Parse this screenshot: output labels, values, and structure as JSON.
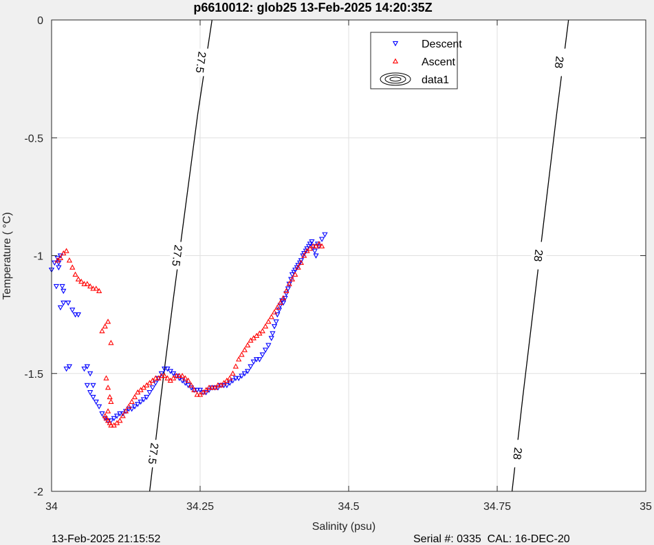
{
  "chart_data": {
    "type": "scatter",
    "title": "p6610012: glob25 13-Feb-2025 14:20:35Z",
    "xlabel": "Salinity (psu)",
    "ylabel": "Temperature (   °C)",
    "xlim": [
      34,
      35
    ],
    "ylim": [
      -2,
      0
    ],
    "xticks": [
      34,
      34.25,
      34.5,
      34.75,
      35
    ],
    "xtick_labels": [
      "34",
      "34.25",
      "34.5",
      "34.75",
      "35"
    ],
    "yticks": [
      0,
      -0.5,
      -1,
      -1.5,
      -2
    ],
    "ytick_labels": [
      "0",
      "-0.5",
      "-1",
      "-1.5",
      "-2"
    ],
    "grid": true,
    "legend_position": "top-center",
    "contours": [
      {
        "label": "27.5",
        "points": [
          [
            34.165,
            -2.0
          ],
          [
            34.184,
            -1.6
          ],
          [
            34.204,
            -1.2
          ],
          [
            34.225,
            -0.8
          ],
          [
            34.246,
            -0.4
          ],
          [
            34.27,
            0.0
          ]
        ],
        "label_positions": [
          [
            34.252,
            -0.18
          ],
          [
            34.212,
            -1.0
          ],
          [
            34.172,
            -1.84
          ]
        ]
      },
      {
        "label": "28",
        "points": [
          [
            34.775,
            -2.0
          ],
          [
            34.793,
            -1.6
          ],
          [
            34.812,
            -1.2
          ],
          [
            34.831,
            -0.8
          ],
          [
            34.85,
            -0.4
          ],
          [
            34.87,
            0.0
          ]
        ],
        "label_positions": [
          [
            34.855,
            -0.18
          ],
          [
            34.82,
            -1.0
          ],
          [
            34.785,
            -1.84
          ]
        ]
      }
    ],
    "series": [
      {
        "name": "Descent",
        "color": "#0000ff",
        "marker": "triangle-down",
        "x": [
          34.0,
          34.005,
          34.01,
          34.015,
          34.012,
          34.018,
          34.02,
          34.015,
          34.008,
          34.012,
          34.02,
          34.028,
          34.035,
          34.04,
          34.045,
          34.03,
          34.025,
          34.06,
          34.065,
          34.07,
          34.055,
          34.06,
          34.065,
          34.07,
          34.075,
          34.08,
          34.085,
          34.09,
          34.095,
          34.1,
          34.105,
          34.11,
          34.115,
          34.12,
          34.125,
          34.13,
          34.135,
          34.14,
          34.145,
          34.15,
          34.155,
          34.16,
          34.165,
          34.17,
          34.175,
          34.18,
          34.185,
          34.19,
          34.195,
          34.2,
          34.205,
          34.21,
          34.215,
          34.22,
          34.225,
          34.23,
          34.235,
          34.24,
          34.245,
          34.25,
          34.255,
          34.26,
          34.265,
          34.27,
          34.275,
          34.28,
          34.285,
          34.29,
          34.295,
          34.3,
          34.305,
          34.31,
          34.315,
          34.32,
          34.325,
          34.33,
          34.335,
          34.34,
          34.345,
          34.35,
          34.355,
          34.36,
          34.365,
          34.37,
          34.372,
          34.375,
          34.378,
          34.38,
          34.383,
          34.385,
          34.388,
          34.39,
          34.393,
          34.395,
          34.398,
          34.4,
          34.403,
          34.405,
          34.408,
          34.41,
          34.413,
          34.415,
          34.418,
          34.42,
          34.423,
          34.425,
          34.428,
          34.43,
          34.433,
          34.435,
          34.438,
          34.44,
          34.443,
          34.445,
          34.448,
          34.45,
          34.455,
          34.46
        ],
        "y": [
          -1.06,
          -1.03,
          -1.01,
          -1.0,
          -1.05,
          -1.13,
          -1.2,
          -1.22,
          -1.13,
          -1.03,
          -1.15,
          -1.2,
          -1.23,
          -1.25,
          -1.25,
          -1.47,
          -1.48,
          -1.47,
          -1.5,
          -1.55,
          -1.48,
          -1.55,
          -1.58,
          -1.6,
          -1.62,
          -1.64,
          -1.67,
          -1.69,
          -1.7,
          -1.7,
          -1.69,
          -1.68,
          -1.67,
          -1.67,
          -1.66,
          -1.65,
          -1.65,
          -1.64,
          -1.63,
          -1.62,
          -1.61,
          -1.6,
          -1.58,
          -1.56,
          -1.54,
          -1.52,
          -1.5,
          -1.48,
          -1.48,
          -1.49,
          -1.5,
          -1.51,
          -1.52,
          -1.53,
          -1.54,
          -1.55,
          -1.56,
          -1.57,
          -1.57,
          -1.57,
          -1.58,
          -1.58,
          -1.57,
          -1.56,
          -1.56,
          -1.56,
          -1.55,
          -1.55,
          -1.55,
          -1.54,
          -1.53,
          -1.52,
          -1.52,
          -1.51,
          -1.5,
          -1.49,
          -1.47,
          -1.45,
          -1.44,
          -1.44,
          -1.42,
          -1.4,
          -1.38,
          -1.35,
          -1.33,
          -1.3,
          -1.28,
          -1.25,
          -1.23,
          -1.21,
          -1.19,
          -1.2,
          -1.18,
          -1.16,
          -1.14,
          -1.12,
          -1.1,
          -1.08,
          -1.07,
          -1.06,
          -1.05,
          -1.04,
          -1.03,
          -1.02,
          -1.0,
          -0.99,
          -0.98,
          -0.97,
          -0.96,
          -0.95,
          -0.94,
          -0.96,
          -0.98,
          -1.0,
          -0.95,
          -0.96,
          -0.93,
          -0.91
        ]
      },
      {
        "name": "Ascent",
        "color": "#ff0000",
        "marker": "triangle-up",
        "x": [
          34.01,
          34.015,
          34.02,
          34.025,
          34.03,
          34.035,
          34.04,
          34.045,
          34.05,
          34.055,
          34.06,
          34.065,
          34.07,
          34.075,
          34.08,
          34.085,
          34.09,
          34.095,
          34.1,
          34.092,
          34.095,
          34.098,
          34.1,
          34.095,
          34.09,
          34.092,
          34.095,
          34.098,
          34.1,
          34.105,
          34.11,
          34.115,
          34.12,
          34.125,
          34.13,
          34.135,
          34.14,
          34.145,
          34.15,
          34.155,
          34.16,
          34.165,
          34.17,
          34.175,
          34.18,
          34.185,
          34.19,
          34.195,
          34.2,
          34.205,
          34.21,
          34.215,
          34.22,
          34.225,
          34.23,
          34.235,
          34.24,
          34.245,
          34.25,
          34.255,
          34.26,
          34.265,
          34.27,
          34.275,
          34.28,
          34.285,
          34.29,
          34.295,
          34.3,
          34.305,
          34.31,
          34.315,
          34.32,
          34.325,
          34.33,
          34.335,
          34.34,
          34.345,
          34.35,
          34.355,
          34.36,
          34.365,
          34.37,
          34.375,
          34.38,
          34.385,
          34.39,
          34.395,
          34.4,
          34.405,
          34.41,
          34.415,
          34.42,
          34.425,
          34.43,
          34.435,
          34.44,
          34.445,
          34.45,
          34.455
        ],
        "y": [
          -1.02,
          -1.01,
          -0.99,
          -0.98,
          -1.02,
          -1.05,
          -1.08,
          -1.1,
          -1.11,
          -1.12,
          -1.12,
          -1.13,
          -1.14,
          -1.14,
          -1.15,
          -1.32,
          -1.3,
          -1.28,
          -1.37,
          -1.52,
          -1.56,
          -1.6,
          -1.62,
          -1.66,
          -1.68,
          -1.69,
          -1.7,
          -1.71,
          -1.72,
          -1.72,
          -1.71,
          -1.7,
          -1.68,
          -1.66,
          -1.64,
          -1.62,
          -1.6,
          -1.58,
          -1.57,
          -1.56,
          -1.55,
          -1.54,
          -1.53,
          -1.52,
          -1.52,
          -1.51,
          -1.51,
          -1.52,
          -1.53,
          -1.52,
          -1.51,
          -1.51,
          -1.51,
          -1.52,
          -1.53,
          -1.55,
          -1.57,
          -1.59,
          -1.59,
          -1.58,
          -1.57,
          -1.56,
          -1.56,
          -1.56,
          -1.55,
          -1.55,
          -1.54,
          -1.53,
          -1.52,
          -1.5,
          -1.47,
          -1.44,
          -1.42,
          -1.4,
          -1.38,
          -1.36,
          -1.35,
          -1.34,
          -1.33,
          -1.32,
          -1.3,
          -1.28,
          -1.26,
          -1.24,
          -1.22,
          -1.2,
          -1.18,
          -1.15,
          -1.12,
          -1.1,
          -1.08,
          -1.05,
          -1.03,
          -1.0,
          -0.98,
          -0.97,
          -0.96,
          -0.96,
          -0.95,
          -0.96
        ]
      }
    ],
    "legend": [
      {
        "label": "Descent",
        "kind": "marker-down",
        "color": "#0000ff"
      },
      {
        "label": "Ascent",
        "kind": "marker-up",
        "color": "#ff0000"
      },
      {
        "label": "data1",
        "kind": "contour",
        "color": "#000000"
      }
    ]
  },
  "footer": {
    "left": "13-Feb-2025 21:15:52",
    "right": "Serial #: 0335  CAL: 16-DEC-20"
  }
}
